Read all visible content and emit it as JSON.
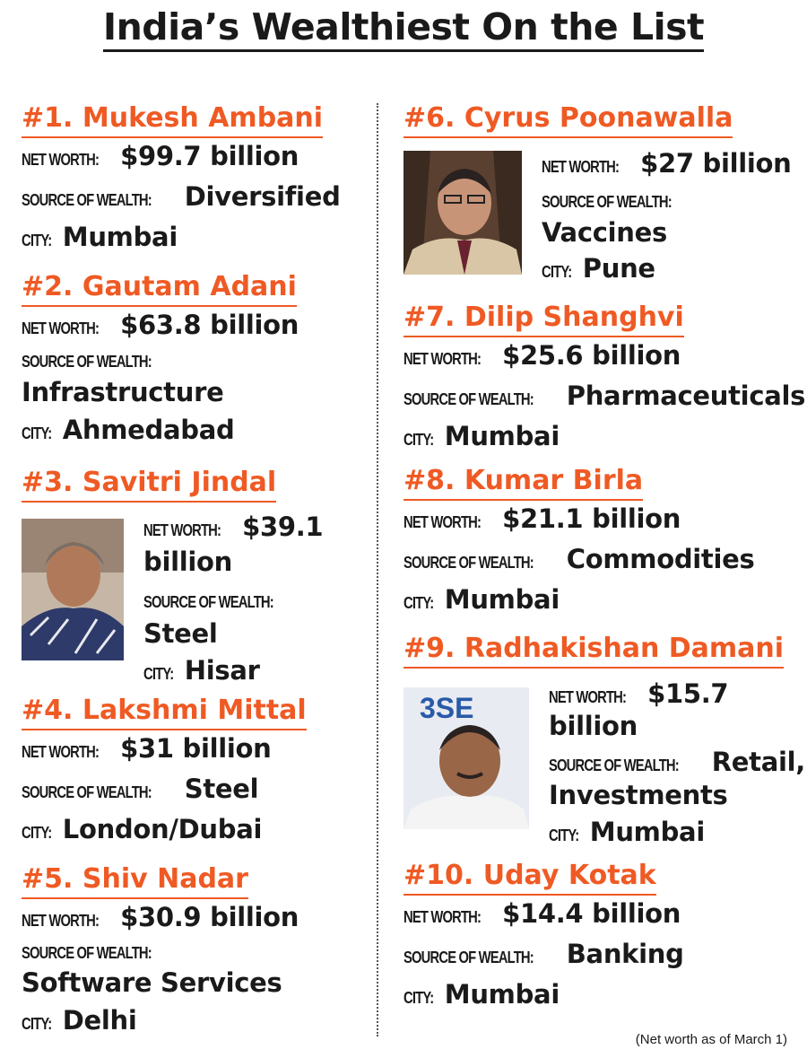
{
  "title": "India’s Wealthiest On the List",
  "labels": {
    "net_worth": "NET WORTH:",
    "source": "SOURCE OF WEALTH:",
    "city": "CITY:"
  },
  "entries": [
    {
      "name": "#1. Mukesh Ambani",
      "net_worth": "$99.7 billion",
      "source": "Diversified",
      "city": "Mumbai"
    },
    {
      "name": "#2. Gautam Adani",
      "net_worth": "$63.8 billion",
      "source": "Infrastructure",
      "city": "Ahmedabad"
    },
    {
      "name": "#3. Savitri Jindal",
      "net_worth_1": "$39.1",
      "net_worth_2": "billion",
      "source": "Steel",
      "city": "Hisar"
    },
    {
      "name": "#4. Lakshmi Mittal",
      "net_worth": "$31 billion",
      "source": "Steel",
      "city": "London/Dubai"
    },
    {
      "name": "#5. Shiv Nadar",
      "net_worth": "$30.9 billion",
      "source": "Software Services",
      "city": "Delhi"
    },
    {
      "name": "#6. Cyrus Poonawalla",
      "net_worth": "$27 billion",
      "source": "Vaccines",
      "city": "Pune"
    },
    {
      "name": "#7. Dilip Shanghvi",
      "net_worth": "$25.6 billion",
      "source": "Pharmaceuticals",
      "city": "Mumbai"
    },
    {
      "name": "#8. Kumar Birla",
      "net_worth": "$21.1 billion",
      "source": "Commodities",
      "city": "Mumbai"
    },
    {
      "name": "#9. Radhakishan Damani",
      "net_worth_1": "$15.7",
      "net_worth_2": "billion",
      "source_1": "Retail,",
      "source_2": "Investments",
      "city": "Mumbai"
    },
    {
      "name": "#10. Uday Kotak",
      "net_worth": "$14.4 billion",
      "source": "Banking",
      "city": "Mumbai"
    }
  ],
  "footnote": "(Net worth as of March 1)",
  "colors": {
    "accent": "#ef5a24",
    "text": "#1a1a1a"
  }
}
